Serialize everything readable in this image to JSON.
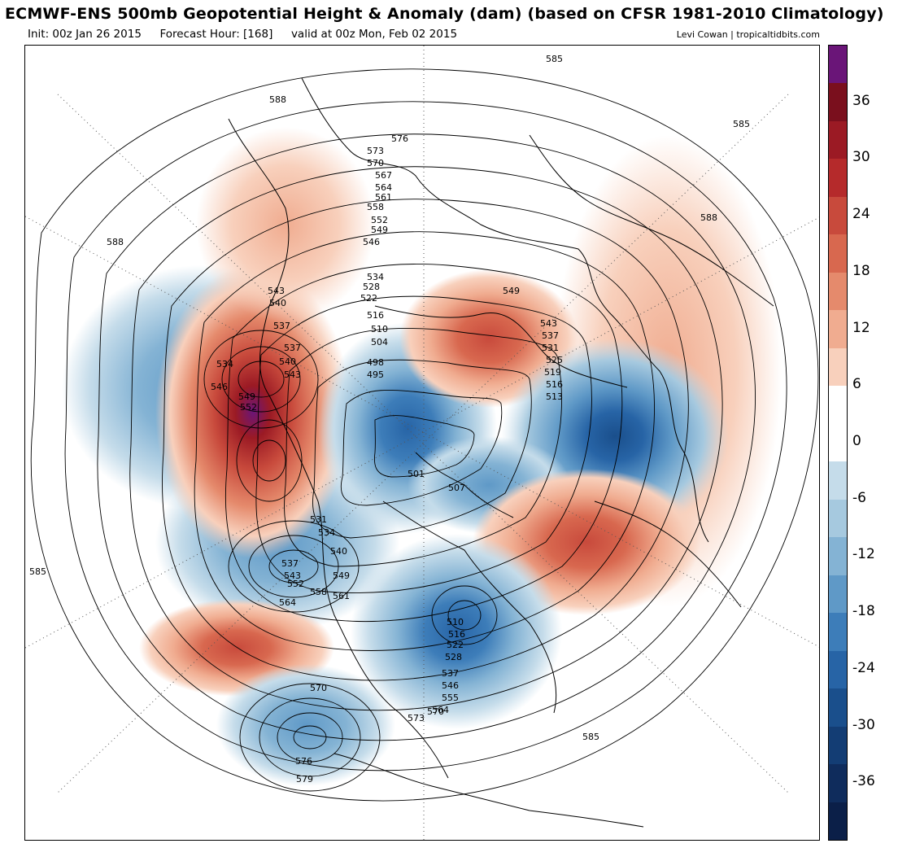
{
  "header": {
    "title": "ECMWF-ENS 500mb Geopotential Height & Anomaly (dam) (based on CFSR 1981-2010 Climatology)",
    "init": "Init: 00z Jan 26 2015",
    "forecast_hour": "Forecast Hour: [168]",
    "valid": "valid at 00z Mon, Feb 02 2015",
    "credit": "Levi Cowan | tropicaltidbits.com"
  },
  "colorbar": {
    "labels": [
      "36",
      "30",
      "24",
      "18",
      "12",
      "6",
      "0",
      "-6",
      "-12",
      "-18",
      "-24",
      "-30",
      "-36"
    ],
    "colors": [
      "#6a1578",
      "#7a0f1d",
      "#9b1a24",
      "#b52a2b",
      "#c84a3c",
      "#d8684f",
      "#e58a6c",
      "#f0ac90",
      "#f8d0bc",
      "#ffffff",
      "#ffffff",
      "#c5dcea",
      "#a6c9df",
      "#84b3d4",
      "#5f99c7",
      "#3d7db9",
      "#2764a6",
      "#1a4f8c",
      "#133d74",
      "#0f2c5c",
      "#0b1f48"
    ]
  },
  "anomalies": [
    {
      "id": "west-coast-ridge",
      "sign": "positive",
      "level": 36
    },
    {
      "id": "canada-alaska-ridge",
      "sign": "positive",
      "level": 12
    },
    {
      "id": "greenland-trough",
      "sign": "negative",
      "level": -24
    },
    {
      "id": "eastern-us-trough",
      "sign": "negative",
      "level": -24
    },
    {
      "id": "pacific-trough-north",
      "sign": "negative",
      "level": -12
    },
    {
      "id": "pacific-trough-south",
      "sign": "negative",
      "level": -12
    },
    {
      "id": "siberia-ridge",
      "sign": "positive",
      "level": 18
    },
    {
      "id": "europe-ridge",
      "sign": "positive",
      "level": 6
    },
    {
      "id": "europe-trough",
      "sign": "negative",
      "level": -30
    },
    {
      "id": "asia-trough",
      "sign": "negative",
      "level": -12
    },
    {
      "id": "atlantic-ridge",
      "sign": "positive",
      "level": 18
    },
    {
      "id": "subtropical-ridge",
      "sign": "positive",
      "level": 12
    }
  ],
  "contour_labels": [
    "585",
    "588",
    "585",
    "576",
    "573",
    "570",
    "567",
    "564",
    "561",
    "558",
    "552",
    "549",
    "546",
    "534",
    "528",
    "522",
    "516",
    "510",
    "504",
    "498",
    "495",
    "588",
    "543",
    "540",
    "537",
    "534",
    "537",
    "540",
    "543",
    "546",
    "549",
    "552",
    "549",
    "543",
    "537",
    "531",
    "525",
    "519",
    "516",
    "513",
    "501",
    "507",
    "531",
    "534",
    "540",
    "537",
    "543",
    "552",
    "558",
    "564",
    "549",
    "561",
    "510",
    "516",
    "522",
    "528",
    "537",
    "546",
    "555",
    "564",
    "570",
    "573",
    "570",
    "576",
    "579",
    "585",
    "585",
    "588"
  ]
}
